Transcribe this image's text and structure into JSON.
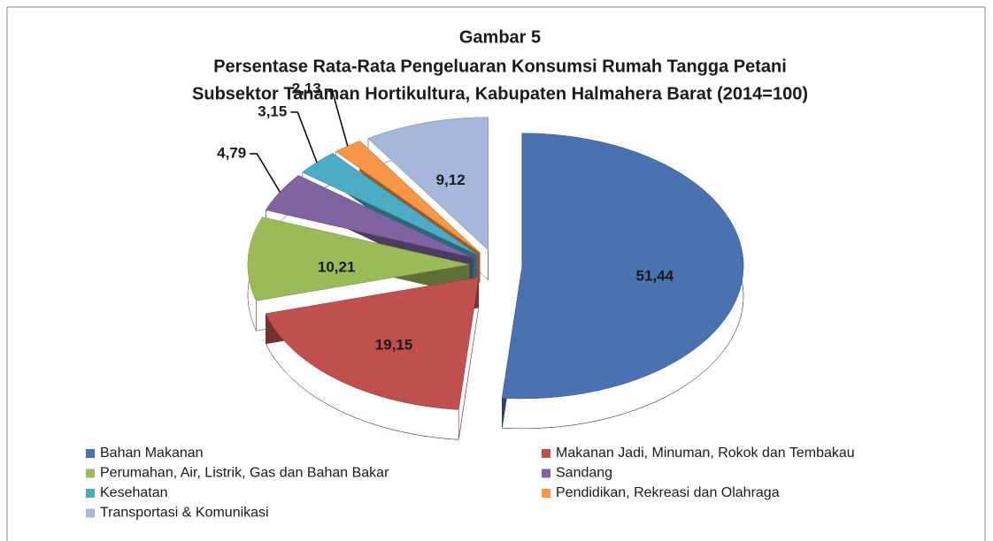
{
  "chart_data": {
    "type": "pie3d",
    "title": [
      "Gambar 5",
      "Persentase Rata-Rata Pengeluaran Konsumsi Rumah Tangga Petani",
      "Subsektor Tanaman Hortikultura, Kabupaten Halmahera Barat (2014=100)"
    ],
    "categories": [
      "Bahan Makanan",
      "Makanan Jadi, Minuman, Rokok dan Tembakau",
      "Perumahan, Air, Listrik, Gas dan Bahan Bakar",
      "Sandang",
      "Kesehatan",
      "Pendidikan, Rekreasi dan Olahraga",
      "Transportasi & Komunikasi"
    ],
    "values": [
      51.44,
      19.15,
      10.21,
      4.79,
      3.15,
      2.13,
      9.12
    ],
    "value_labels": [
      "51,44",
      "19,15",
      "10,21",
      "4,79",
      "3,15",
      "2,13",
      "9,12"
    ],
    "colors": [
      "#4a72b0",
      "#c0504d",
      "#9bbb59",
      "#8064a2",
      "#4bacc6",
      "#f79646",
      "#a5b8dc"
    ],
    "legend": "bottom"
  }
}
